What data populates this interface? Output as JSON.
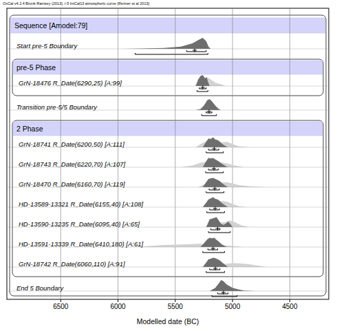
{
  "chart_data": {
    "type": "oxcal",
    "title": "OxCal v4.2.4 Bronk Ramsey (2013); r:5 IntCal13 atmospheric curve (Reimer et al 2013)",
    "x_label": "Modelled date (BC)",
    "xlim": [
      6970,
      4160
    ],
    "xticks": [
      6500,
      6000,
      5500,
      5000,
      4500
    ],
    "grid": true,
    "model": {
      "label": "Sequence [Amodel:79]",
      "items": [
        {
          "kind": "boundary",
          "label": "Start pre-5 Boundary",
          "posterior": {
            "x": [
              5950,
              5800,
              5600,
              5450,
              5350,
              5300,
              5260,
              5230,
              5210,
              5190
            ],
            "y": [
              0,
              0.03,
              0.08,
              0.2,
              0.5,
              0.8,
              1,
              0.7,
              0.2,
              0
            ]
          },
          "range68": [
            5400,
            5230
          ],
          "range95": [
            5850,
            5215
          ],
          "mean": 5330
        },
        {
          "kind": "phase",
          "label": "pre-5 Phase",
          "items": [
            {
              "kind": "date",
              "label": "GrN-18476 R_Date(6290,25) [A:99]",
              "likelihood": {
                "x": [
                  5330,
                  5300,
                  5270,
                  5240,
                  5220,
                  5190,
                  5150,
                  5100,
                  5060
                ],
                "y": [
                  0,
                  0.5,
                  0.9,
                  0.7,
                  0.8,
                  0.6,
                  0.3,
                  0.15,
                  0
                ]
              },
              "posterior": {
                "x": [
                  5320,
                  5300,
                  5280,
                  5260,
                  5240,
                  5225,
                  5215,
                  5200
                ],
                "y": [
                  0,
                  0.6,
                  0.9,
                  1,
                  0.7,
                  0.8,
                  0.4,
                  0
                ]
              },
              "range68": [
                5290,
                5230
              ],
              "range95": [
                5310,
                5215
              ],
              "mean": 5260
            }
          ]
        },
        {
          "kind": "boundary",
          "label": "Transition pre-5/5 Boundary",
          "posterior": {
            "x": [
              5320,
              5280,
              5250,
              5220,
              5200,
              5180,
              5150,
              5120,
              5100
            ],
            "y": [
              0,
              0.1,
              0.4,
              0.9,
              1,
              0.8,
              0.4,
              0.1,
              0
            ]
          },
          "range68": [
            5230,
            5180
          ],
          "range95": [
            5270,
            5140
          ],
          "mean": 5205
        },
        {
          "kind": "phase",
          "label": "2 Phase",
          "items": [
            {
              "kind": "date",
              "label": "GrN-18741 R_Date(6200,50) [A:111]",
              "likelihood": {
                "x": [
                  5320,
                  5280,
                  5220,
                  5200,
                  5170,
                  5120,
                  5080,
                  5050,
                  5000,
                  4950,
                  4850
                ],
                "y": [
                  0,
                  0.3,
                  0.6,
                  0.55,
                  0.6,
                  0.5,
                  0.45,
                  0.5,
                  0.3,
                  0.1,
                  0
                ]
              },
              "posterior": {
                "x": [
                  5260,
                  5230,
                  5210,
                  5190,
                  5170,
                  5150,
                  5130,
                  5110,
                  5090,
                  5060,
                  5040
                ],
                "y": [
                  0,
                  0.5,
                  0.8,
                  0.75,
                  0.9,
                  0.7,
                  0.65,
                  0.5,
                  0.3,
                  0.1,
                  0
                ]
              },
              "range68": [
                5210,
                5120
              ],
              "range95": [
                5230,
                5080
              ],
              "mean": 5160
            },
            {
              "kind": "date",
              "label": "GrN-18743 R_Date(6220,70) [A:107]",
              "likelihood": {
                "x": [
                  5450,
                  5350,
                  5280,
                  5220,
                  5180,
                  5120,
                  5080,
                  5030,
                  4980,
                  4900
                ],
                "y": [
                  0,
                  0.15,
                  0.4,
                  0.5,
                  0.5,
                  0.45,
                  0.4,
                  0.3,
                  0.15,
                  0
                ]
              },
              "posterior": {
                "x": [
                  5260,
                  5230,
                  5210,
                  5190,
                  5170,
                  5150,
                  5130,
                  5110,
                  5090,
                  5060,
                  5040
                ],
                "y": [
                  0,
                  0.55,
                  0.85,
                  0.8,
                  0.85,
                  0.7,
                  0.6,
                  0.45,
                  0.3,
                  0.1,
                  0
                ]
              },
              "range68": [
                5210,
                5125
              ],
              "range95": [
                5235,
                5080
              ],
              "mean": 5162
            },
            {
              "kind": "date",
              "label": "GrN-18470 R_Date(6160,70) [A:119]",
              "likelihood": {
                "x": [
                  5300,
                  5230,
                  5200,
                  5150,
                  5100,
                  5050,
                  5000,
                  4950,
                  4850,
                  4700
                ],
                "y": [
                  0,
                  0.35,
                  0.45,
                  0.5,
                  0.45,
                  0.45,
                  0.35,
                  0.2,
                  0.08,
                  0
                ]
              },
              "posterior": {
                "x": [
                  5260,
                  5230,
                  5210,
                  5190,
                  5170,
                  5150,
                  5130,
                  5110,
                  5090,
                  5060,
                  5040
                ],
                "y": [
                  0,
                  0.45,
                  0.75,
                  0.8,
                  0.85,
                  0.75,
                  0.65,
                  0.55,
                  0.35,
                  0.12,
                  0
                ]
              },
              "range68": [
                5205,
                5115
              ],
              "range95": [
                5230,
                5075
              ],
              "mean": 5155
            },
            {
              "kind": "date",
              "label": "HD-13589-13321 R_Date(6155,40) [A:108]",
              "likelihood": {
                "x": [
                  5250,
                  5220,
                  5180,
                  5150,
                  5120,
                  5080,
                  5050,
                  5000,
                  4950,
                  4880
                ],
                "y": [
                  0,
                  0.3,
                  0.55,
                  0.6,
                  0.5,
                  0.55,
                  0.5,
                  0.3,
                  0.1,
                  0
                ]
              },
              "posterior": {
                "x": [
                  5260,
                  5230,
                  5210,
                  5190,
                  5170,
                  5150,
                  5130,
                  5110,
                  5090,
                  5060,
                  5040
                ],
                "y": [
                  0,
                  0.4,
                  0.7,
                  0.8,
                  0.9,
                  0.75,
                  0.7,
                  0.55,
                  0.35,
                  0.12,
                  0
                ]
              },
              "range68": [
                5200,
                5115
              ],
              "range95": [
                5225,
                5070
              ],
              "mean": 5152
            },
            {
              "kind": "date",
              "label": "HD-13590-13235 R_Date(6095,40) [A:65]",
              "likelihood": {
                "x": [
                  5220,
                  5200,
                  5150,
                  5100,
                  5060,
                  5030,
                  5000,
                  4960,
                  4920,
                  4850
                ],
                "y": [
                  0,
                  0.4,
                  0.5,
                  0.4,
                  0.45,
                  0.6,
                  0.55,
                  0.35,
                  0.15,
                  0
                ]
              },
              "posterior": {
                "x": [
                  5230,
                  5200,
                  5170,
                  5140,
                  5120,
                  5100,
                  5080,
                  5060,
                  5040,
                  5020,
                  5000
                ],
                "y": [
                  0,
                  0.7,
                  0.8,
                  0.9,
                  0.6,
                  0.3,
                  0.2,
                  0.3,
                  0.5,
                  0.3,
                  0
                ]
              },
              "range68": [
                5190,
                5110
              ],
              "range95": [
                5210,
                5020
              ],
              "mean": 5130
            },
            {
              "kind": "date",
              "label": "HD-13591-13339 R_Date(6410,180) [A:61]",
              "likelihood": {
                "x": [
                  5850,
                  5750,
                  5600,
                  5500,
                  5400,
                  5300,
                  5200,
                  5100,
                  5000,
                  4900
                ],
                "y": [
                  0,
                  0.08,
                  0.18,
                  0.22,
                  0.25,
                  0.3,
                  0.25,
                  0.2,
                  0.1,
                  0
                ]
              },
              "posterior": {
                "x": [
                  5280,
                  5250,
                  5220,
                  5200,
                  5180,
                  5160,
                  5140,
                  5120,
                  5100,
                  5070,
                  5050
                ],
                "y": [
                  0,
                  0.35,
                  0.7,
                  0.85,
                  0.8,
                  0.85,
                  0.65,
                  0.5,
                  0.3,
                  0.1,
                  0
                ]
              },
              "range68": [
                5215,
                5130
              ],
              "range95": [
                5260,
                5070
              ],
              "mean": 5170
            },
            {
              "kind": "date",
              "label": "GrN-18742 R_Date(6060,110) [A:91]",
              "likelihood": {
                "x": [
                  5300,
                  5200,
                  5100,
                  5050,
                  5000,
                  4950,
                  4900,
                  4850,
                  4800,
                  4700
                ],
                "y": [
                  0,
                  0.1,
                  0.25,
                  0.3,
                  0.35,
                  0.35,
                  0.3,
                  0.25,
                  0.15,
                  0
                ]
              },
              "posterior": {
                "x": [
                  5260,
                  5230,
                  5210,
                  5190,
                  5170,
                  5150,
                  5130,
                  5110,
                  5090,
                  5060,
                  5040
                ],
                "y": [
                  0,
                  0.4,
                  0.7,
                  0.75,
                  0.85,
                  0.8,
                  0.7,
                  0.6,
                  0.4,
                  0.15,
                  0
                ]
              },
              "range68": [
                5200,
                5110
              ],
              "range95": [
                5230,
                5070
              ],
              "mean": 5150
            }
          ]
        },
        {
          "kind": "boundary",
          "label": "End 5 Boundary",
          "posterior": {
            "x": [
              5200,
              5150,
              5120,
              5100,
              5080,
              5050,
              5000,
              4950,
              4900,
              4800
            ],
            "y": [
              0,
              0.3,
              0.7,
              1,
              0.9,
              0.6,
              0.3,
              0.15,
              0.05,
              0
            ]
          },
          "range68": [
            5130,
            5040
          ],
          "range95": [
            5180,
            4960
          ],
          "mean": 5080
        }
      ]
    }
  }
}
